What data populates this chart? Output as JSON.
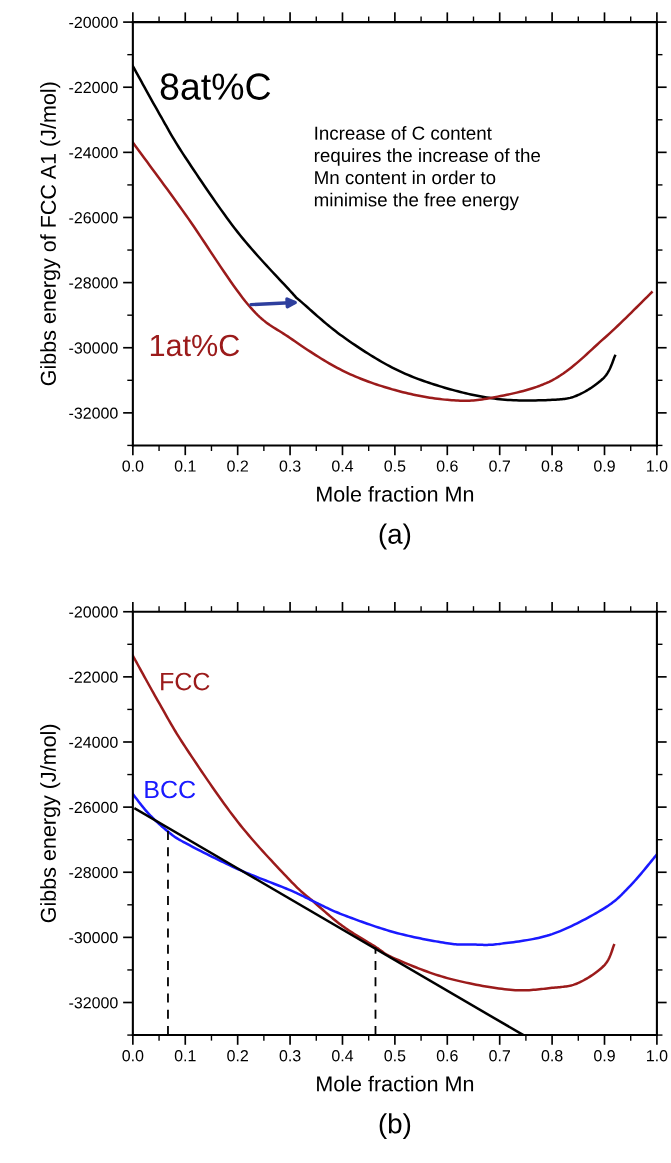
{
  "chart_data": [
    {
      "type": "line",
      "xlabel": "Mole fraction Mn",
      "ylabel": "Gibbs energy of FCC A1 (J/mol)",
      "xlim": [
        0,
        1
      ],
      "ylim": [
        -33000,
        -20000
      ],
      "xticks": [
        {
          "value": 0,
          "label": "0.0"
        },
        {
          "value": 0.1,
          "label": "0.1"
        },
        {
          "value": 0.2,
          "label": "0.2"
        },
        {
          "value": 0.3,
          "label": "0.3"
        },
        {
          "value": 0.4,
          "label": "0.4"
        },
        {
          "value": 0.5,
          "label": "0.5"
        },
        {
          "value": 0.6,
          "label": "0.6"
        },
        {
          "value": 0.7,
          "label": "0.7"
        },
        {
          "value": 0.8,
          "label": "0.8"
        },
        {
          "value": 0.9,
          "label": "0.9"
        },
        {
          "value": 1,
          "label": "1.0"
        }
      ],
      "yticks": [
        -32000,
        -30000,
        -28000,
        -26000,
        -24000,
        -22000,
        -20000
      ],
      "grid": false,
      "legend": false,
      "marker": "none",
      "line_style": "solid",
      "series": [
        {
          "name": "8at%C",
          "color": "#000000",
          "x": [
            0,
            0.05,
            0.1,
            0.2,
            0.3,
            0.322,
            0.4,
            0.5,
            0.6,
            0.7,
            0.8,
            0.85,
            0.9,
            0.92
          ],
          "values": [
            -21350,
            -22800,
            -24150,
            -26450,
            -28250,
            -28600,
            -29650,
            -30650,
            -31250,
            -31580,
            -31600,
            -31450,
            -30900,
            -30250
          ]
        },
        {
          "name": "1at%C",
          "color": "#9b1b1b",
          "x": [
            0,
            0.1,
            0.22,
            0.3,
            0.4,
            0.5,
            0.6,
            0.68,
            0.8,
            0.9,
            0.99
          ],
          "values": [
            -23700,
            -25900,
            -28680,
            -29700,
            -30700,
            -31300,
            -31600,
            -31550,
            -31000,
            -29700,
            -28300
          ]
        }
      ],
      "annotations": [
        "Increase of C content\nrequires the increase of the\nMn content in order to\nminimise the free energy",
        "(a)"
      ]
    },
    {
      "type": "line",
      "xlabel": "Mole fraction Mn",
      "ylabel": "Gibbs energy (J/mol)",
      "xlim": [
        0,
        1
      ],
      "ylim": [
        -33000,
        -20000
      ],
      "xticks": [
        {
          "value": 0,
          "label": "0.0"
        },
        {
          "value": 0.1,
          "label": "0.1"
        },
        {
          "value": 0.2,
          "label": "0.2"
        },
        {
          "value": 0.3,
          "label": "0.3"
        },
        {
          "value": 0.4,
          "label": "0.4"
        },
        {
          "value": 0.5,
          "label": "0.5"
        },
        {
          "value": 0.6,
          "label": "0.6"
        },
        {
          "value": 0.7,
          "label": "0.7"
        },
        {
          "value": 0.8,
          "label": "0.8"
        },
        {
          "value": 0.9,
          "label": "0.9"
        },
        {
          "value": 1,
          "label": "1.0"
        }
      ],
      "yticks": [
        -32000,
        -30000,
        -28000,
        -26000,
        -24000,
        -22000,
        -20000
      ],
      "grid": false,
      "legend": false,
      "marker": "none",
      "line_style": "solid",
      "series": [
        {
          "name": "FCC",
          "color": "#9b1b1b",
          "x": [
            0,
            0.05,
            0.1,
            0.2,
            0.3,
            0.343,
            0.4,
            0.461,
            0.5,
            0.6,
            0.72,
            0.8,
            0.85,
            0.9,
            0.918
          ],
          "values": [
            -21350,
            -22800,
            -24150,
            -26450,
            -28250,
            -28880,
            -29650,
            -30270,
            -30650,
            -31250,
            -31610,
            -31550,
            -31400,
            -30850,
            -30240
          ]
        },
        {
          "name": "BCC",
          "color": "#1a1aff",
          "x": [
            0,
            0.03,
            0.067,
            0.1,
            0.2,
            0.3,
            0.343,
            0.4,
            0.5,
            0.6,
            0.65,
            0.7,
            0.8,
            0.9,
            0.95,
            1.0
          ],
          "values": [
            -25600,
            -26200,
            -26750,
            -27100,
            -27900,
            -28550,
            -28880,
            -29300,
            -29850,
            -30180,
            -30220,
            -30200,
            -29900,
            -29100,
            -28400,
            -27450
          ]
        },
        {
          "color": "#000000",
          "x": [
            0.005,
            0.745
          ],
          "values": [
            -26050,
            -33000
          ]
        },
        {
          "color": "#000000",
          "line_style": "dashed",
          "x": [
            0.067,
            0.067
          ],
          "values": [
            -33000,
            -26700
          ]
        },
        {
          "color": "#000000",
          "line_style": "dashed",
          "x": [
            0.463,
            0.463
          ],
          "values": [
            -33000,
            -30300
          ]
        }
      ],
      "annotations": [
        "(b)"
      ]
    }
  ]
}
